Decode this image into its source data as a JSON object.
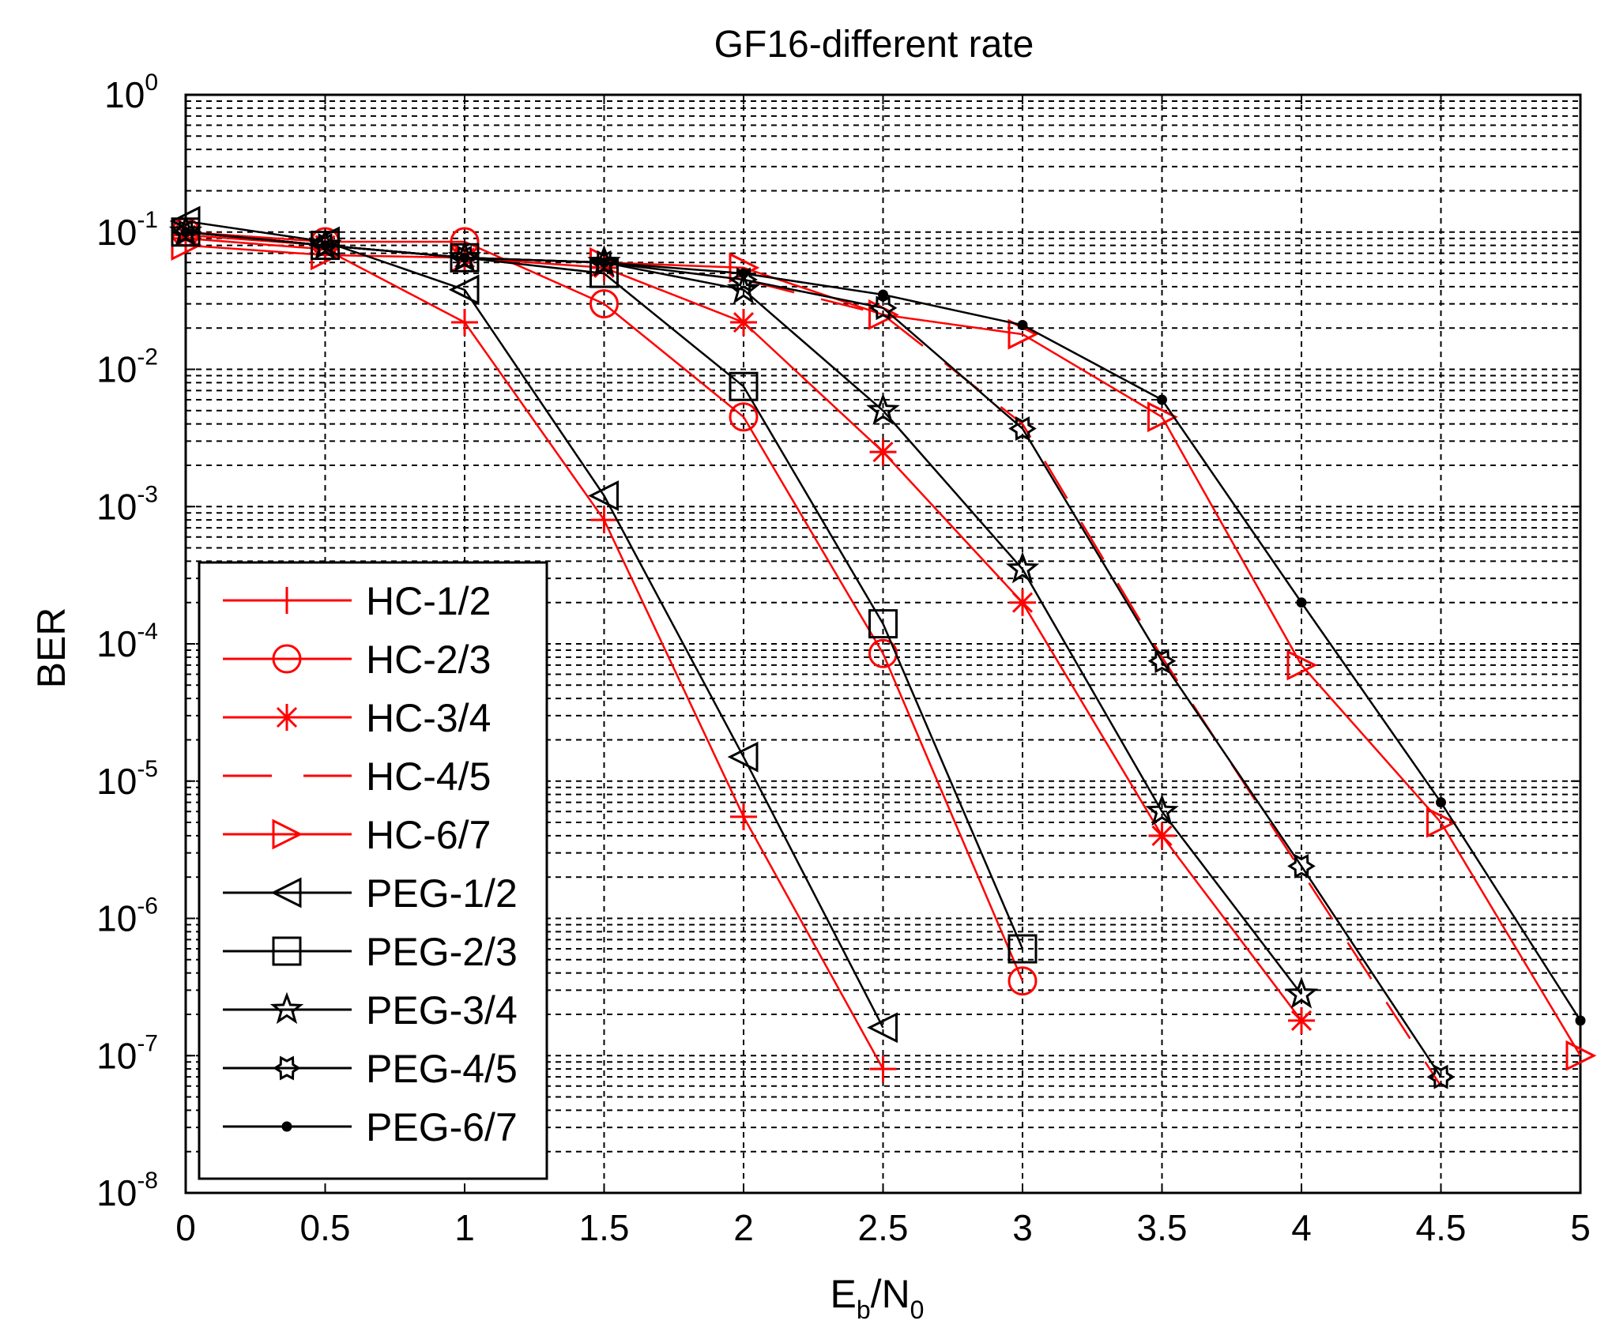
{
  "chart_data": {
    "type": "line",
    "title": "GF16-different rate",
    "xlabel": {
      "main": "E",
      "sub1": "b",
      "mid": "/N",
      "sub2": "0"
    },
    "ylabel": "BER",
    "xlim": [
      0,
      5
    ],
    "ylim_exp": [
      -8,
      0
    ],
    "yscale": "log",
    "grid": true,
    "legend_position": "bottom-left",
    "x_ticks": [
      "0",
      "0.5",
      "1",
      "1.5",
      "2",
      "2.5",
      "3",
      "3.5",
      "4",
      "4.5",
      "5"
    ],
    "y_ticks": [
      {
        "base": "10",
        "exp": "0"
      },
      {
        "base": "10",
        "exp": "-1"
      },
      {
        "base": "10",
        "exp": "-2"
      },
      {
        "base": "10",
        "exp": "-3"
      },
      {
        "base": "10",
        "exp": "-4"
      },
      {
        "base": "10",
        "exp": "-5"
      },
      {
        "base": "10",
        "exp": "-6"
      },
      {
        "base": "10",
        "exp": "-7"
      },
      {
        "base": "10",
        "exp": "-8"
      }
    ],
    "series": [
      {
        "name": "HC-1/2",
        "color": "#ff0000",
        "marker": "plus",
        "dash": "solid",
        "x": [
          0,
          0.5,
          1,
          1.5,
          2,
          2.5
        ],
        "y": [
          0.09,
          0.075,
          0.022,
          0.0008,
          5.5e-06,
          8e-08
        ]
      },
      {
        "name": "HC-2/3",
        "color": "#ff0000",
        "marker": "circle",
        "dash": "solid",
        "x": [
          0,
          0.5,
          1,
          1.5,
          2,
          2.5,
          3
        ],
        "y": [
          0.1,
          0.085,
          0.085,
          0.03,
          0.0045,
          8.5e-05,
          3.5e-07
        ]
      },
      {
        "name": "HC-3/4",
        "color": "#ff0000",
        "marker": "asterisk",
        "dash": "solid",
        "x": [
          0,
          0.5,
          1,
          1.5,
          2,
          2.5,
          3,
          3.5,
          4
        ],
        "y": [
          0.095,
          0.08,
          0.065,
          0.055,
          0.022,
          0.0025,
          0.0002,
          4e-06,
          1.8e-07
        ]
      },
      {
        "name": "HC-4/5",
        "color": "#ff0000",
        "marker": "none",
        "dash": "dashed",
        "x": [
          0,
          0.5,
          1,
          1.5,
          2,
          2.5,
          3,
          3.5,
          4,
          4.5
        ],
        "y": [
          0.1,
          0.08,
          0.065,
          0.06,
          0.045,
          0.025,
          0.004,
          8e-05,
          2.2e-06,
          6e-08
        ]
      },
      {
        "name": "HC-6/7",
        "color": "#ff0000",
        "marker": "triangle-right",
        "dash": "solid",
        "x": [
          0,
          0.5,
          1,
          1.5,
          2,
          2.5,
          3,
          3.5,
          4,
          4.5,
          5
        ],
        "y": [
          0.08,
          0.068,
          0.065,
          0.06,
          0.055,
          0.025,
          0.018,
          0.0045,
          7e-05,
          5e-06,
          1e-07
        ]
      },
      {
        "name": "PEG-1/2",
        "color": "#000000",
        "marker": "triangle-left",
        "dash": "solid",
        "x": [
          0,
          0.5,
          1,
          1.5,
          2,
          2.5
        ],
        "y": [
          0.12,
          0.085,
          0.038,
          0.0012,
          1.5e-05,
          1.6e-07
        ]
      },
      {
        "name": "PEG-2/3",
        "color": "#000000",
        "marker": "square",
        "dash": "solid",
        "x": [
          0,
          0.5,
          1,
          1.5,
          2,
          2.5,
          3
        ],
        "y": [
          0.1,
          0.08,
          0.065,
          0.05,
          0.0075,
          0.00014,
          6e-07
        ]
      },
      {
        "name": "PEG-3/4",
        "color": "#000000",
        "marker": "star",
        "dash": "solid",
        "x": [
          0,
          0.5,
          1,
          1.5,
          2,
          2.5,
          3,
          3.5,
          4
        ],
        "y": [
          0.1,
          0.08,
          0.065,
          0.06,
          0.038,
          0.005,
          0.00035,
          6e-06,
          2.8e-07
        ]
      },
      {
        "name": "PEG-4/5",
        "color": "#000000",
        "marker": "hexagram",
        "dash": "solid",
        "x": [
          0,
          0.5,
          1,
          1.5,
          2,
          2.5,
          3,
          3.5,
          4,
          4.5
        ],
        "y": [
          0.1,
          0.08,
          0.065,
          0.06,
          0.045,
          0.028,
          0.0037,
          7.5e-05,
          2.4e-06,
          7e-08
        ]
      },
      {
        "name": "PEG-6/7",
        "color": "#000000",
        "marker": "dot",
        "dash": "solid",
        "x": [
          0,
          0.5,
          1,
          1.5,
          2,
          2.5,
          3,
          3.5,
          4,
          4.5,
          5
        ],
        "y": [
          0.1,
          0.08,
          0.065,
          0.06,
          0.05,
          0.035,
          0.021,
          0.006,
          0.0002,
          7e-06,
          1.8e-07
        ]
      }
    ]
  }
}
